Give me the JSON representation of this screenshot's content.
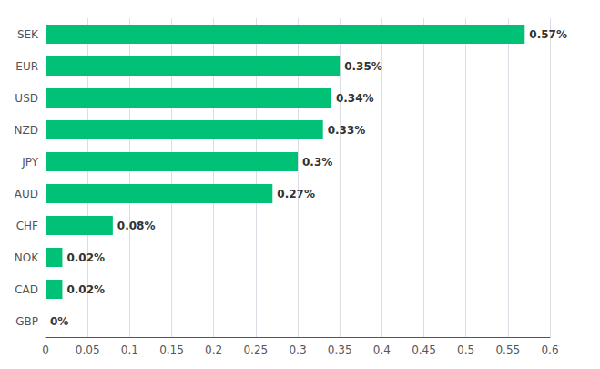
{
  "chart_data": {
    "type": "bar",
    "orientation": "horizontal",
    "categories": [
      "SEK",
      "EUR",
      "USD",
      "NZD",
      "JPY",
      "AUD",
      "CHF",
      "NOK",
      "CAD",
      "GBP"
    ],
    "values": [
      0.57,
      0.35,
      0.34,
      0.33,
      0.3,
      0.27,
      0.08,
      0.02,
      0.02,
      0.0
    ],
    "value_labels": [
      "0.57%",
      "0.35%",
      "0.34%",
      "0.33%",
      "0.3%",
      "0.27%",
      "0.08%",
      "0.02%",
      "0.02%",
      "0%"
    ],
    "color": "#00C176",
    "xlim": [
      0,
      0.6
    ],
    "xticks": [
      0,
      0.05,
      0.1,
      0.15,
      0.2,
      0.25,
      0.3,
      0.35,
      0.4,
      0.45,
      0.5,
      0.55,
      0.6
    ],
    "grid": true,
    "data_labels": true
  }
}
